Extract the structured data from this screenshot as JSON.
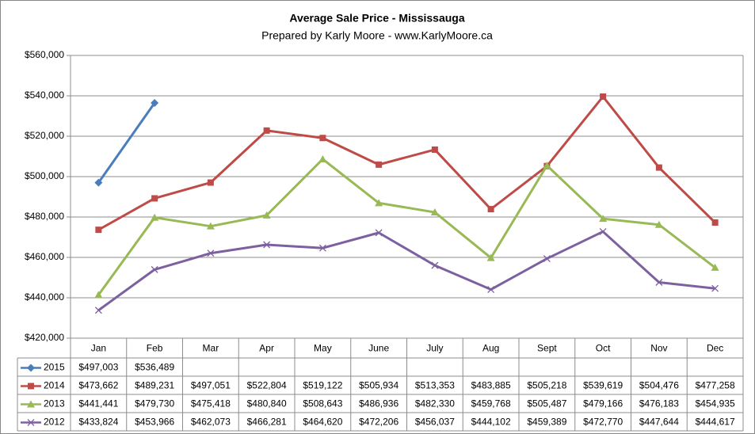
{
  "chart_data": {
    "type": "line",
    "title": "Average Sale Price - Mississauga",
    "subtitle": "Prepared by Karly Moore - www.KarlyMoore.ca",
    "categories": [
      "Jan",
      "Feb",
      "Mar",
      "Apr",
      "May",
      "June",
      "July",
      "Aug",
      "Sept",
      "Oct",
      "Nov",
      "Dec"
    ],
    "ylim": [
      420000,
      560000
    ],
    "yticks": [
      {
        "value": 420000,
        "label": "$420,000"
      },
      {
        "value": 440000,
        "label": "$440,000"
      },
      {
        "value": 460000,
        "label": "$460,000"
      },
      {
        "value": 480000,
        "label": "$480,000"
      },
      {
        "value": 500000,
        "label": "$500,000"
      },
      {
        "value": 520000,
        "label": "$520,000"
      },
      {
        "value": 540000,
        "label": "$540,000"
      },
      {
        "value": 560000,
        "label": "$560,000"
      }
    ],
    "grid": true,
    "series": [
      {
        "name": "2015",
        "color": "#4a7ebb",
        "marker": "diamond",
        "values": [
          497003,
          536489,
          null,
          null,
          null,
          null,
          null,
          null,
          null,
          null,
          null,
          null
        ],
        "value_labels": [
          "$497,003",
          "$536,489",
          null,
          null,
          null,
          null,
          null,
          null,
          null,
          null,
          null,
          null
        ]
      },
      {
        "name": "2014",
        "color": "#be4b48",
        "marker": "square",
        "values": [
          473662,
          489231,
          497051,
          522804,
          519122,
          505934,
          513353,
          483885,
          505218,
          539619,
          504476,
          477258
        ],
        "value_labels": [
          "$473,662",
          "$489,231",
          "$497,051",
          "$522,804",
          "$519,122",
          "$505,934",
          "$513,353",
          "$483,885",
          "$505,218",
          "$539,619",
          "$504,476",
          "$477,258"
        ]
      },
      {
        "name": "2013",
        "color": "#98b954",
        "marker": "triangle",
        "values": [
          441441,
          479730,
          475418,
          480840,
          508643,
          486936,
          482330,
          459768,
          505487,
          479166,
          476183,
          454935
        ],
        "value_labels": [
          "$441,441",
          "$479,730",
          "$475,418",
          "$480,840",
          "$508,643",
          "$486,936",
          "$482,330",
          "$459,768",
          "$505,487",
          "$479,166",
          "$476,183",
          "$454,935"
        ]
      },
      {
        "name": "2012",
        "color": "#7d60a0",
        "marker": "x",
        "values": [
          433824,
          453966,
          462073,
          466281,
          464620,
          472206,
          456037,
          444102,
          459389,
          472770,
          447644,
          444617
        ],
        "value_labels": [
          "$433,824",
          "$453,966",
          "$462,073",
          "$466,281",
          "$464,620",
          "$472,206",
          "$456,037",
          "$444,102",
          "$459,389",
          "$472,770",
          "$447,644",
          "$444,617"
        ]
      }
    ]
  }
}
